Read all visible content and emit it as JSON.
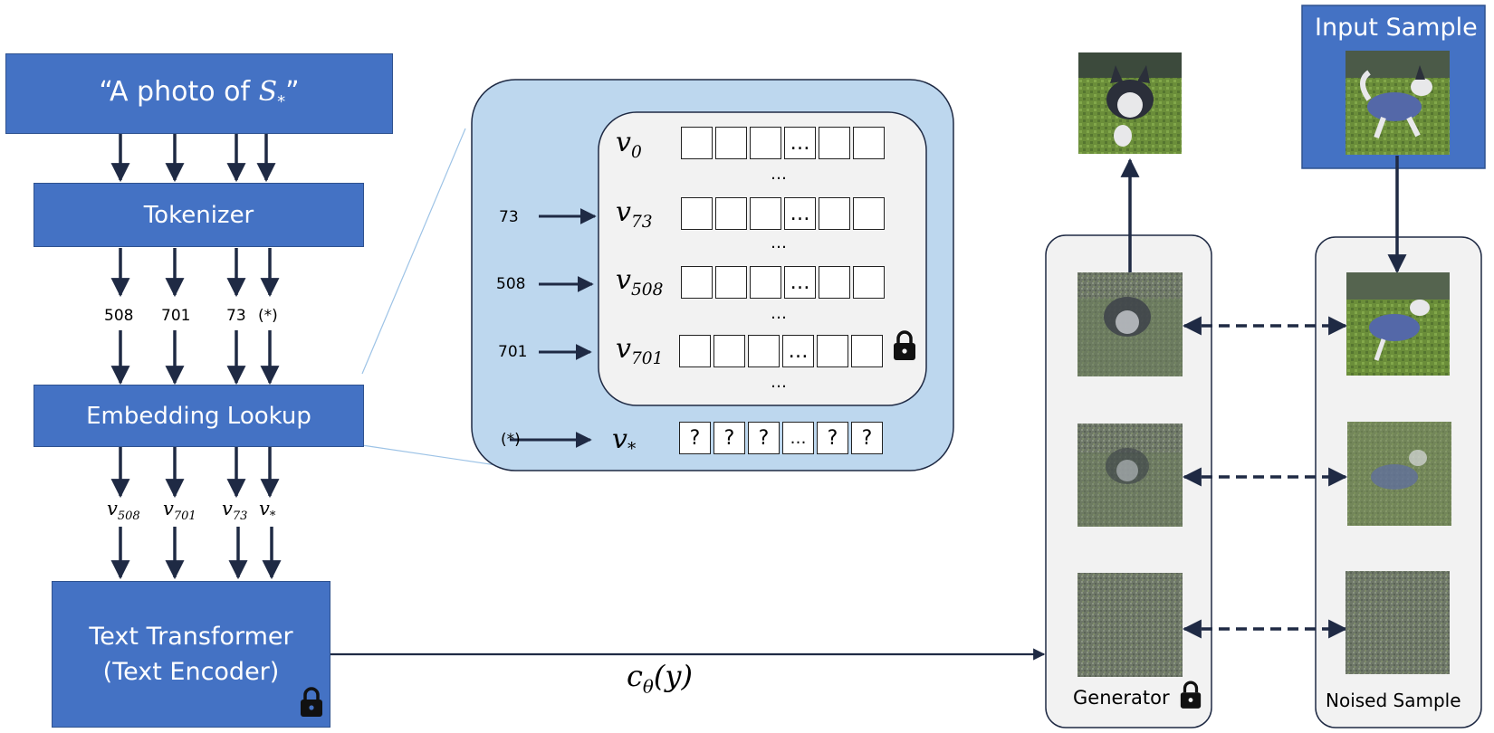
{
  "text_pipeline": {
    "prompt_parts": [
      "“A photo of ",
      "S",
      "*",
      "”"
    ],
    "tokenizer_label": "Tokenizer",
    "token_ids": [
      "508",
      "701",
      "73",
      "(*)"
    ],
    "embedding_label": "Embedding Lookup",
    "embedding_outputs": [
      {
        "base": "v",
        "sub": "508"
      },
      {
        "base": "v",
        "sub": "701"
      },
      {
        "base": "v",
        "sub": "73"
      },
      {
        "base": "v",
        "sub": "*"
      }
    ],
    "encoder_label_line1": "Text Transformer",
    "encoder_label_line2": "(Text Encoder)"
  },
  "embedding_table": {
    "rows": [
      {
        "index": "",
        "base": "v",
        "sub": "0"
      },
      {
        "index": "73",
        "base": "v",
        "sub": "73"
      },
      {
        "index": "508",
        "base": "v",
        "sub": "508"
      },
      {
        "index": "701",
        "base": "v",
        "sub": "701"
      }
    ],
    "ellipsis": "…",
    "learned_row": {
      "index": "(*)",
      "base": "v",
      "sub": "*",
      "cells": [
        "?",
        "?",
        "?",
        "…",
        "?",
        "?"
      ]
    }
  },
  "conditioning": {
    "c": "c",
    "sub": "θ",
    "arg": "(y)"
  },
  "generator_label": "Generator",
  "noised_label": "Noised Sample",
  "input_label": "Input Sample",
  "colors": {
    "box_blue": "#4472c4",
    "panel_blue": "#bdd7ee",
    "panel_gray": "#f2f2f2",
    "arrow": "#1f2a44"
  },
  "icons": [
    "lock-icon",
    "dog-photo"
  ]
}
